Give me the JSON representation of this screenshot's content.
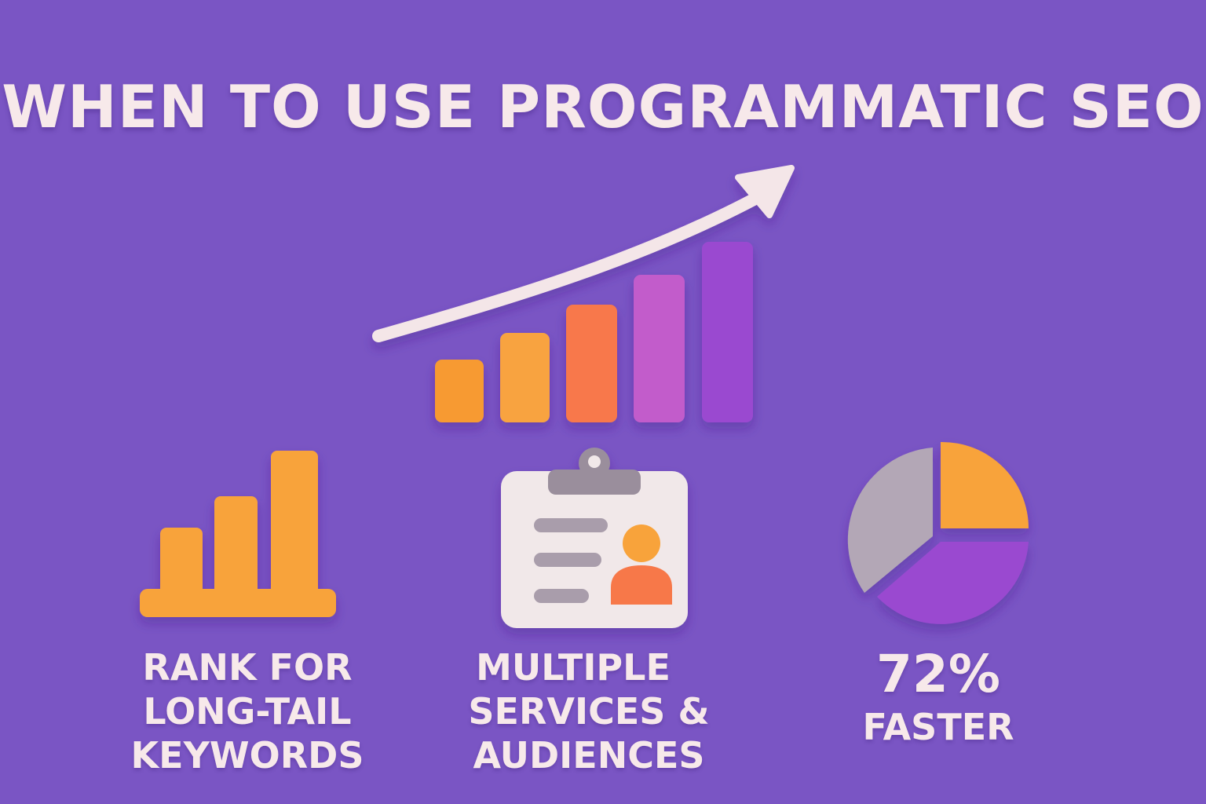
{
  "title": "WHEN TO USE PROGRAMMATIC SEO",
  "hero_chart": {
    "icon": "growth-bar-chart-with-arrow",
    "bar_colors": [
      "#f79a33",
      "#f8a341",
      "#f8784b",
      "#c25ccb",
      "#9a4ad0"
    ],
    "arrow_color": "#f4e6e8"
  },
  "features": [
    {
      "icon": "bar-chart-icon",
      "lines": [
        "RANK FOR",
        "LONG-TAIL",
        "KEYWORDS"
      ]
    },
    {
      "icon": "clipboard-profile-icon",
      "lines": [
        "MULTIPLE",
        "SERVICES &",
        "AUDIENCES"
      ]
    },
    {
      "icon": "pie-chart-icon",
      "stat": "72%",
      "caption": "FASTER"
    }
  ],
  "colors": {
    "background": "#7a55c4",
    "text": "#f7e9ea",
    "orange": "#f8a33b",
    "coral": "#f7784a",
    "purple": "#9a4ad0",
    "gray": "#b3a7b6"
  }
}
